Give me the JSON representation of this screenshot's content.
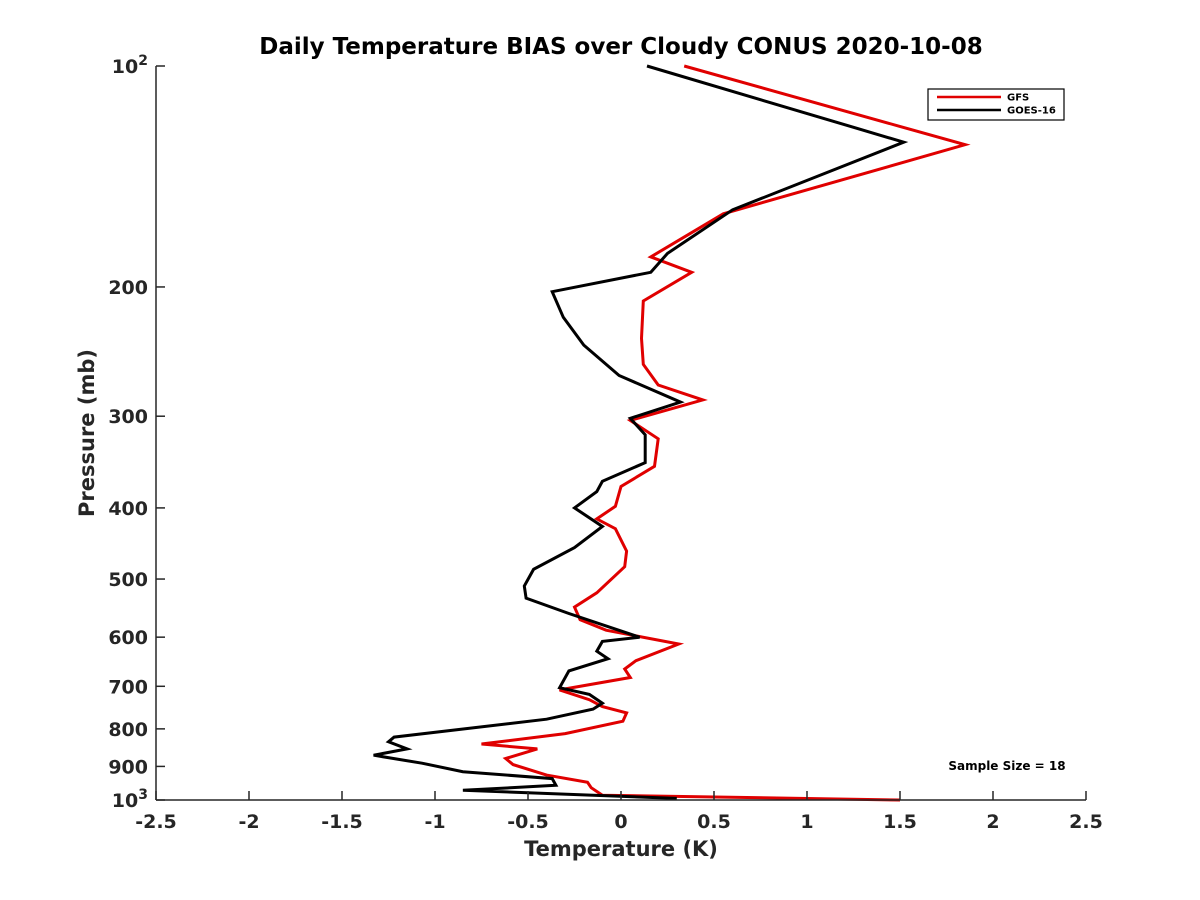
{
  "chart_data": {
    "type": "line",
    "title": "Daily Temperature BIAS over Cloudy CONUS 2020-10-08",
    "xlabel": "Temperature (K)",
    "ylabel": "Pressure (mb)",
    "xlim": [
      -2.5,
      2.5
    ],
    "ylim": [
      100,
      1000
    ],
    "y_scale": "log",
    "y_reversed": true,
    "x_ticks": [
      -2.5,
      -2,
      -1.5,
      -1,
      -0.5,
      0,
      0.5,
      1,
      1.5,
      2,
      2.5
    ],
    "x_tick_labels": [
      "-2.5",
      "-2",
      "-1.5",
      "-1",
      "-0.5",
      "0",
      "0.5",
      "1",
      "1.5",
      "2",
      "2.5"
    ],
    "y_ticks": [
      {
        "value": 100,
        "base": "10",
        "exp": "2"
      },
      {
        "value": 200,
        "label": "200"
      },
      {
        "value": 300,
        "label": "300"
      },
      {
        "value": 400,
        "label": "400"
      },
      {
        "value": 500,
        "label": "500"
      },
      {
        "value": 600,
        "label": "600"
      },
      {
        "value": 700,
        "label": "700"
      },
      {
        "value": 800,
        "label": "800"
      },
      {
        "value": 900,
        "label": "900"
      },
      {
        "value": 1000,
        "base": "10",
        "exp": "3"
      }
    ],
    "grid": false,
    "legend_position": "top-right",
    "annotation": "Sample Size = 18",
    "series": [
      {
        "name": "GFS",
        "color": "#e00000",
        "x": [
          0.34,
          1.85,
          0.55,
          0.16,
          0.38,
          0.12,
          0.11,
          0.12,
          0.2,
          0.44,
          0.05,
          0.2,
          0.18,
          0.0,
          -0.03,
          -0.13,
          -0.03,
          0.03,
          0.02,
          -0.13,
          -0.25,
          -0.22,
          -0.08,
          0.31,
          0.08,
          0.02,
          0.05,
          -0.33,
          -0.17,
          -0.1,
          0.03,
          0.01,
          -0.3,
          -0.75,
          -0.45,
          -0.62,
          -0.58,
          -0.4,
          -0.18,
          -0.16,
          -0.1,
          1.5
        ],
        "y": [
          100,
          128,
          159,
          182,
          191,
          209,
          235,
          255,
          272,
          285,
          304,
          322,
          351,
          374,
          398,
          414,
          427,
          458,
          481,
          522,
          546,
          568,
          587,
          613,
          646,
          663,
          681,
          708,
          730,
          746,
          761,
          781,
          812,
          839,
          852,
          878,
          895,
          925,
          946,
          962,
          985,
          1000
        ]
      },
      {
        "name": "GOES-16",
        "color": "#000000",
        "x": [
          0.14,
          1.52,
          0.6,
          0.25,
          0.16,
          -0.37,
          -0.31,
          -0.2,
          -0.01,
          0.32,
          0.05,
          0.13,
          0.13,
          -0.1,
          -0.13,
          -0.25,
          -0.1,
          -0.25,
          -0.47,
          -0.52,
          -0.51,
          -0.28,
          0.1,
          -0.1,
          -0.13,
          -0.07,
          -0.28,
          -0.33,
          -0.17,
          -0.1,
          -0.15,
          -0.4,
          -1.22,
          -1.25,
          -1.15,
          -1.33,
          -1.07,
          -0.85,
          -0.37,
          -0.35,
          -0.85,
          0.3
        ],
        "y": [
          100,
          127,
          157,
          180,
          191,
          203,
          220,
          240,
          264,
          287,
          302,
          318,
          347,
          368,
          380,
          400,
          424,
          453,
          485,
          511,
          531,
          557,
          600,
          608,
          627,
          642,
          667,
          703,
          718,
          738,
          752,
          776,
          821,
          833,
          852,
          869,
          891,
          915,
          935,
          955,
          970,
          995
        ]
      }
    ]
  }
}
